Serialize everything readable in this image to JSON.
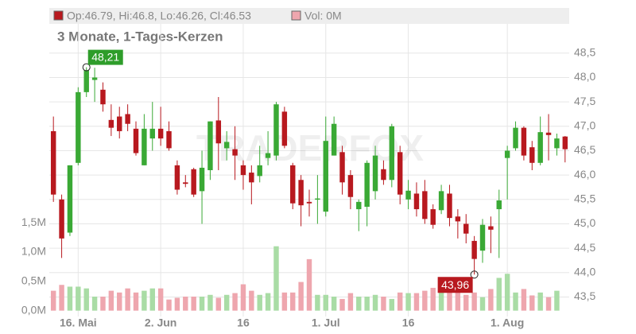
{
  "chart_data": {
    "type": "candlestick",
    "title": "3 Monate, 1-Tages-Kerzen",
    "header_price": "Op:46.79, Hi:46.8, Lo:46.26, Cl:46.53",
    "header_volume": "Vol: 0M",
    "watermark": "TRADERFOX",
    "up_color": "#3aa935",
    "down_color": "#b8191f",
    "volume_up_color": "#a9dca5",
    "volume_down_color": "#eea6ae",
    "categories": [
      null,
      null,
      null,
      "16. Mai",
      null,
      null,
      null,
      null,
      null,
      null,
      null,
      null,
      null,
      "2. Jun",
      null,
      null,
      null,
      null,
      null,
      null,
      null,
      null,
      null,
      "16",
      null,
      null,
      null,
      null,
      null,
      null,
      null,
      null,
      null,
      "1. Jul",
      null,
      null,
      null,
      null,
      null,
      null,
      null,
      null,
      null,
      "16",
      null,
      null,
      null,
      null,
      null,
      null,
      null,
      null,
      null,
      null,
      null,
      "1. Aug",
      null,
      null,
      null,
      null,
      null,
      null,
      null
    ],
    "open": [
      46.9,
      45.5,
      44.82,
      46.25,
      47.7,
      47.95,
      47.75,
      47.13,
      47.2,
      47.25,
      46.95,
      46.2,
      46.75,
      46.95,
      46.9,
      46.2,
      45.85,
      46.12,
      45.67,
      46.1,
      47.12,
      46.55,
      46.53,
      46.2,
      46.05,
      45.98,
      46.35,
      46.4,
      47.3,
      46.2,
      45.9,
      45.45,
      45.5,
      45.25,
      46.4,
      46.47,
      46.0,
      45.3,
      45.35,
      45.67,
      46.12,
      45.9,
      46.47,
      45.5,
      45.62,
      45.67,
      45.3,
      45.28,
      45.62,
      45.15,
      45.0,
      44.65,
      44.45,
      44.95,
      45.3,
      46.35,
      46.55,
      46.97,
      46.57,
      46.25,
      46.87,
      46.55,
      46.79
    ],
    "high": [
      47.2,
      45.6,
      46.2,
      47.8,
      48.21,
      48.2,
      47.9,
      47.45,
      47.4,
      47.45,
      47.1,
      47.25,
      47.5,
      47.4,
      47.1,
      46.3,
      46.0,
      46.15,
      46.5,
      47.1,
      47.6,
      46.9,
      47.0,
      46.3,
      46.2,
      46.6,
      46.9,
      47.5,
      47.4,
      46.25,
      46.0,
      45.7,
      46.0,
      47.2,
      47.2,
      46.6,
      46.1,
      45.5,
      46.3,
      46.6,
      46.3,
      47.05,
      46.6,
      45.9,
      45.85,
      45.9,
      45.4,
      45.8,
      45.8,
      45.3,
      45.2,
      44.75,
      45.1,
      45.15,
      45.7,
      46.6,
      47.1,
      47.0,
      46.7,
      47.2,
      47.25,
      46.85,
      46.8
    ],
    "low": [
      45.45,
      44.3,
      44.75,
      46.2,
      47.6,
      47.5,
      47.3,
      46.8,
      46.75,
      46.9,
      46.4,
      46.2,
      46.5,
      46.6,
      46.5,
      45.6,
      45.75,
      45.55,
      45.0,
      45.9,
      46.1,
      46.3,
      45.9,
      45.7,
      45.4,
      45.85,
      46.2,
      46.3,
      46.55,
      45.3,
      44.95,
      45.15,
      45.0,
      45.15,
      46.4,
      45.6,
      45.3,
      44.85,
      44.95,
      45.5,
      45.8,
      45.75,
      45.4,
      45.3,
      45.15,
      45.0,
      44.9,
      45.2,
      44.95,
      44.7,
      44.6,
      43.96,
      44.2,
      44.4,
      44.3,
      45.5,
      46.5,
      46.3,
      46.1,
      46.2,
      46.3,
      46.4,
      46.26
    ],
    "close": [
      45.6,
      44.7,
      46.2,
      47.7,
      48.15,
      48.0,
      47.45,
      46.97,
      46.9,
      47.05,
      46.45,
      46.95,
      46.95,
      46.75,
      46.55,
      45.7,
      45.82,
      45.6,
      46.15,
      47.1,
      46.65,
      46.68,
      46.4,
      46.0,
      45.85,
      46.2,
      46.45,
      47.45,
      46.6,
      45.42,
      45.38,
      45.42,
      45.52,
      46.7,
      47.05,
      45.85,
      45.55,
      45.45,
      46.25,
      46.4,
      45.9,
      47.0,
      45.6,
      45.68,
      45.3,
      45.1,
      44.98,
      45.67,
      45.12,
      45.05,
      44.8,
      44.28,
      44.98,
      44.88,
      45.48,
      46.5,
      46.97,
      46.4,
      46.25,
      46.88,
      46.82,
      46.75,
      46.53
    ],
    "volume": [
      0.34,
      0.44,
      0.41,
      0.41,
      0.38,
      0.24,
      0.24,
      0.34,
      0.31,
      0.38,
      0.31,
      0.34,
      0.38,
      0.38,
      0.19,
      0.22,
      0.24,
      0.24,
      0.24,
      0.27,
      0.22,
      0.27,
      0.3,
      0.45,
      0.34,
      0.27,
      0.3,
      1.1,
      0.31,
      0.31,
      0.49,
      0.88,
      0.27,
      0.27,
      0.24,
      0.2,
      0.3,
      0.24,
      0.24,
      0.27,
      0.24,
      0.2,
      0.31,
      0.3,
      0.3,
      0.34,
      0.39,
      0.37,
      0.38,
      0.34,
      0.27,
      0.31,
      0.23,
      0.37,
      0.56,
      0.63,
      0.31,
      0.37,
      0.26,
      0.31,
      0.23,
      0.34,
      0
    ],
    "ylim": [
      43.1,
      49.1
    ],
    "yticks": [
      {
        "value": 43.5,
        "label": "43,5"
      },
      {
        "value": 44,
        "label": "44,0"
      },
      {
        "value": 44.5,
        "label": "44,5"
      },
      {
        "value": 45,
        "label": "45,0"
      },
      {
        "value": 45.5,
        "label": "45,5"
      },
      {
        "value": 46,
        "label": "46,0"
      },
      {
        "value": 46.5,
        "label": "46,5"
      },
      {
        "value": 47,
        "label": "47,0"
      },
      {
        "value": 47.5,
        "label": "47,5"
      },
      {
        "value": 48,
        "label": "48,0"
      },
      {
        "value": 48.5,
        "label": "48,5"
      }
    ],
    "y2lim": [
      -0.1,
      4.9
    ],
    "y2ticks": [
      {
        "value": 0,
        "label": "0,0M"
      },
      {
        "value": 0.5,
        "label": "0,5M"
      },
      {
        "value": 1,
        "label": "1,0M"
      },
      {
        "value": 1.5,
        "label": "1,5M"
      }
    ],
    "max_label": {
      "value": 48.21,
      "label": "48,21"
    },
    "min_label": {
      "value": 43.96,
      "label": "43,96"
    },
    "grid": true
  }
}
